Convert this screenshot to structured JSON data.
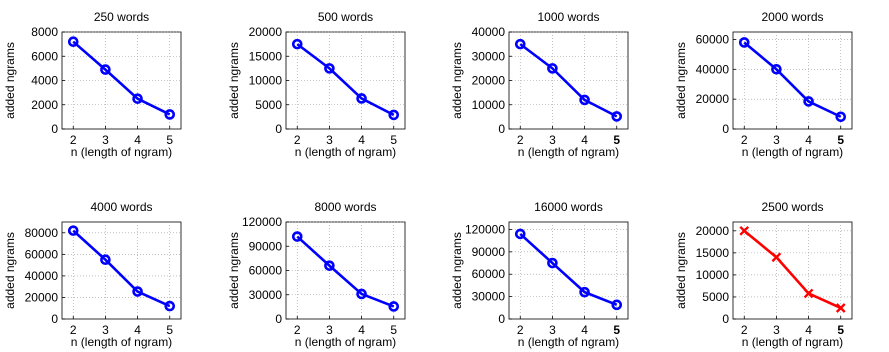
{
  "chart_data": [
    {
      "type": "line",
      "title": "250 words",
      "xlabel": "n (length of ngram)",
      "ylabel": "added ngrams",
      "x": [
        2,
        3,
        4,
        5
      ],
      "ylim": [
        0,
        8000
      ],
      "yticks": [
        "0",
        "2000",
        "4000",
        "6000",
        "8000"
      ],
      "yticks_v": [
        0,
        2000,
        4000,
        6000,
        8000
      ],
      "series": [
        {
          "values": [
            7200,
            4900,
            2500,
            1200
          ]
        }
      ],
      "color": "#0000ff",
      "marker": "circle",
      "grid": true
    },
    {
      "type": "line",
      "title": "500 words",
      "xlabel": "n (length of ngram)",
      "ylabel": "added ngrams",
      "x": [
        2,
        3,
        4,
        5
      ],
      "ylim": [
        0,
        20000
      ],
      "yticks": [
        "0",
        "5000",
        "10000",
        "15000",
        "20000"
      ],
      "yticks_v": [
        0,
        5000,
        10000,
        15000,
        20000
      ],
      "series": [
        {
          "values": [
            17500,
            12500,
            6300,
            2900
          ]
        }
      ],
      "color": "#0000ff",
      "marker": "circle",
      "grid": true
    },
    {
      "type": "line",
      "title": "1000 words",
      "xlabel": "n (length of ngram)",
      "ylabel": "added ngrams",
      "x": [
        2,
        3,
        4,
        5
      ],
      "ylim": [
        0,
        40000
      ],
      "yticks": [
        "0",
        "10000",
        "20000",
        "30000",
        "40000"
      ],
      "yticks_v": [
        0,
        10000,
        20000,
        30000,
        40000
      ],
      "series": [
        {
          "values": [
            35000,
            25000,
            12000,
            5200
          ]
        }
      ],
      "color": "#0000ff",
      "marker": "circle",
      "grid": true
    },
    {
      "type": "line",
      "title": "2000 words",
      "xlabel": "n (length of ngram)",
      "ylabel": "added ngrams",
      "x": [
        2,
        3,
        4,
        5
      ],
      "ylim": [
        0,
        65000
      ],
      "yticks": [
        "0",
        "20000",
        "40000",
        "60000"
      ],
      "yticks_v": [
        0,
        20000,
        40000,
        60000
      ],
      "series": [
        {
          "values": [
            58000,
            40000,
            18500,
            8200
          ]
        }
      ],
      "color": "#0000ff",
      "marker": "circle",
      "grid": true
    },
    {
      "type": "line",
      "title": "4000 words",
      "xlabel": "n (length of ngram)",
      "ylabel": "added ngrams",
      "x": [
        2,
        3,
        4,
        5
      ],
      "ylim": [
        0,
        90000
      ],
      "yticks": [
        "0",
        "20000",
        "40000",
        "60000",
        "80000"
      ],
      "yticks_v": [
        0,
        20000,
        40000,
        60000,
        80000
      ],
      "series": [
        {
          "values": [
            82000,
            55000,
            25500,
            12000
          ]
        }
      ],
      "color": "#0000ff",
      "marker": "circle",
      "grid": true
    },
    {
      "type": "line",
      "title": "8000 words",
      "xlabel": "n (length of ngram)",
      "ylabel": "added ngrams",
      "x": [
        2,
        3,
        4,
        5
      ],
      "ylim": [
        0,
        120000
      ],
      "yticks": [
        "0",
        "30000",
        "60000",
        "90000",
        "120000"
      ],
      "yticks_v": [
        0,
        30000,
        60000,
        90000,
        120000
      ],
      "series": [
        {
          "values": [
            102000,
            66000,
            31000,
            15500
          ]
        }
      ],
      "color": "#0000ff",
      "marker": "circle",
      "grid": true
    },
    {
      "type": "line",
      "title": "16000 words",
      "xlabel": "n (length of ngram)",
      "ylabel": "added ngrams",
      "x": [
        2,
        3,
        4,
        5
      ],
      "ylim": [
        0,
        130000
      ],
      "yticks": [
        "0",
        "30000",
        "60000",
        "90000",
        "120000"
      ],
      "yticks_v": [
        0,
        30000,
        60000,
        90000,
        120000
      ],
      "series": [
        {
          "values": [
            114000,
            75000,
            36000,
            19000
          ]
        }
      ],
      "color": "#0000ff",
      "marker": "circle",
      "grid": true
    },
    {
      "type": "line",
      "title": "2500 words",
      "xlabel": "n (length of ngram)",
      "ylabel": "added ngrams",
      "x": [
        2,
        3,
        4,
        5
      ],
      "ylim": [
        0,
        22000
      ],
      "yticks": [
        "0",
        "5000",
        "10000",
        "15000",
        "20000"
      ],
      "yticks_v": [
        0,
        5000,
        10000,
        15000,
        20000
      ],
      "series": [
        {
          "values": [
            20000,
            14000,
            5800,
            2500
          ]
        }
      ],
      "color": "#ff0000",
      "marker": "x",
      "grid": true
    }
  ]
}
